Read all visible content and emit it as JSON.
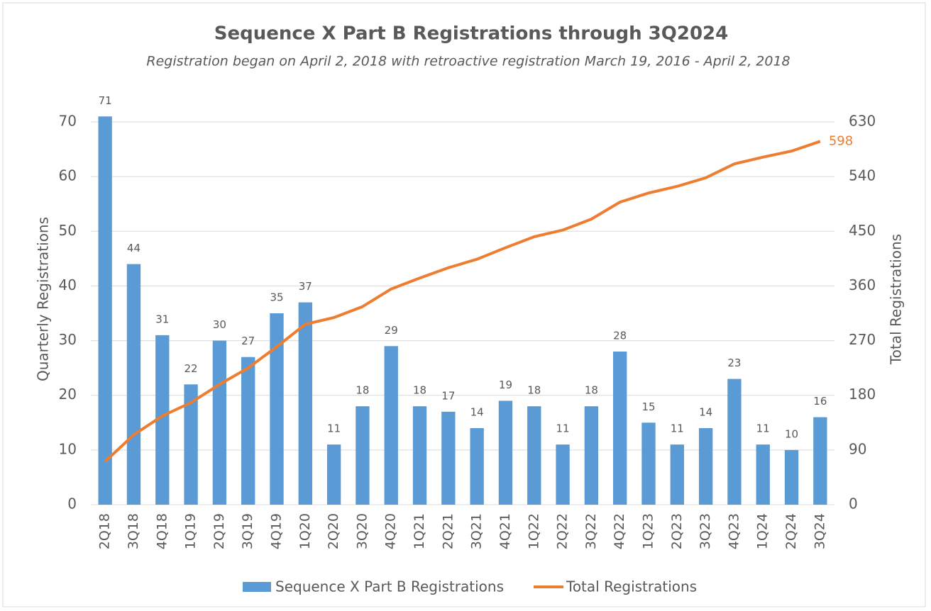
{
  "chart_data": {
    "type": "bar_line",
    "title": "Sequence X Part B Registrations through 3Q2024",
    "subtitle": "Registration began on April 2, 2018 with retroactive registration March 19, 2016 - April 2, 2018",
    "y_label": "Quarterly Registrations",
    "y2_label": "Total Registrations",
    "categories": [
      "2Q18",
      "3Q18",
      "4Q18",
      "1Q19",
      "2Q19",
      "3Q19",
      "4Q19",
      "1Q20",
      "2Q20",
      "3Q20",
      "4Q20",
      "1Q21",
      "2Q21",
      "3Q21",
      "4Q21",
      "1Q22",
      "2Q22",
      "3Q22",
      "4Q22",
      "1Q23",
      "2Q23",
      "3Q23",
      "4Q23",
      "1Q24",
      "2Q24",
      "3Q24"
    ],
    "series": [
      {
        "name": "Sequence X Part B Registrations",
        "color": "#5b9bd5",
        "type": "bar",
        "values": [
          71,
          44,
          31,
          22,
          30,
          27,
          35,
          37,
          11,
          18,
          29,
          18,
          17,
          14,
          19,
          18,
          11,
          18,
          28,
          15,
          11,
          14,
          23,
          11,
          10,
          16
        ]
      },
      {
        "name": "Total Registrations",
        "color": "#ed7d31",
        "type": "line",
        "axis": "y2",
        "values": [
          71,
          115,
          146,
          168,
          198,
          225,
          260,
          297,
          308,
          326,
          355,
          373,
          390,
          404,
          423,
          441,
          452,
          470,
          498,
          513,
          524,
          538,
          561,
          572,
          582,
          598
        ]
      }
    ],
    "ylim": [
      0,
      70
    ],
    "yticks": [
      0,
      10,
      20,
      30,
      40,
      50,
      60,
      70
    ],
    "y2lim": [
      0,
      630
    ],
    "y2ticks": [
      0,
      90,
      180,
      270,
      360,
      450,
      540,
      630
    ],
    "grid": true,
    "legend": "bottom"
  }
}
